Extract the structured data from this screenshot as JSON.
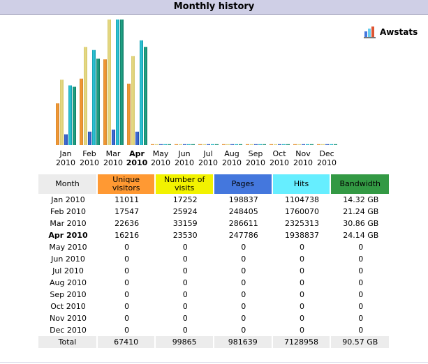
{
  "title": "Monthly history",
  "logo": {
    "text": "Awstats",
    "icon": "awstats-logo-icon"
  },
  "colors": {
    "header_month": "#ececec",
    "unique_visitors": "#ff9933",
    "number_of_visits": "#f2f200",
    "pages": "#4477dd",
    "hits": "#66eeff",
    "bandwidth": "#339944"
  },
  "columns": {
    "month": "Month",
    "unique": "Unique visitors",
    "visits": "Number of visits",
    "pages": "Pages",
    "hits": "Hits",
    "bandwidth": "Bandwidth"
  },
  "chart_data": {
    "type": "bar",
    "categories": [
      "Jan 2010",
      "Feb 2010",
      "Mar 2010",
      "Apr 2010",
      "May 2010",
      "Jun 2010",
      "Jul 2010",
      "Aug 2010",
      "Sep 2010",
      "Oct 2010",
      "Nov 2010",
      "Dec 2010"
    ],
    "current_month": "Apr 2010",
    "series": [
      {
        "name": "Unique visitors",
        "values": [
          11011,
          17547,
          22636,
          16216,
          0,
          0,
          0,
          0,
          0,
          0,
          0,
          0
        ]
      },
      {
        "name": "Number of visits",
        "values": [
          17252,
          25924,
          33159,
          23530,
          0,
          0,
          0,
          0,
          0,
          0,
          0,
          0
        ]
      },
      {
        "name": "Pages",
        "values": [
          198837,
          248405,
          286611,
          247786,
          0,
          0,
          0,
          0,
          0,
          0,
          0,
          0
        ]
      },
      {
        "name": "Hits",
        "values": [
          1104738,
          1760070,
          2325313,
          1938837,
          0,
          0,
          0,
          0,
          0,
          0,
          0,
          0
        ]
      },
      {
        "name": "Bandwidth",
        "values": [
          14.32,
          21.24,
          30.86,
          24.14,
          0,
          0,
          0,
          0,
          0,
          0,
          0,
          0
        ]
      }
    ]
  },
  "rows": [
    {
      "month": "Jan 2010",
      "unique": "11011",
      "visits": "17252",
      "pages": "198837",
      "hits": "1104738",
      "bandwidth": "14.32 GB"
    },
    {
      "month": "Feb 2010",
      "unique": "17547",
      "visits": "25924",
      "pages": "248405",
      "hits": "1760070",
      "bandwidth": "21.24 GB"
    },
    {
      "month": "Mar 2010",
      "unique": "22636",
      "visits": "33159",
      "pages": "286611",
      "hits": "2325313",
      "bandwidth": "30.86 GB"
    },
    {
      "month": "Apr 2010",
      "unique": "16216",
      "visits": "23530",
      "pages": "247786",
      "hits": "1938837",
      "bandwidth": "24.14 GB"
    },
    {
      "month": "May 2010",
      "unique": "0",
      "visits": "0",
      "pages": "0",
      "hits": "0",
      "bandwidth": "0"
    },
    {
      "month": "Jun 2010",
      "unique": "0",
      "visits": "0",
      "pages": "0",
      "hits": "0",
      "bandwidth": "0"
    },
    {
      "month": "Jul 2010",
      "unique": "0",
      "visits": "0",
      "pages": "0",
      "hits": "0",
      "bandwidth": "0"
    },
    {
      "month": "Aug 2010",
      "unique": "0",
      "visits": "0",
      "pages": "0",
      "hits": "0",
      "bandwidth": "0"
    },
    {
      "month": "Sep 2010",
      "unique": "0",
      "visits": "0",
      "pages": "0",
      "hits": "0",
      "bandwidth": "0"
    },
    {
      "month": "Oct 2010",
      "unique": "0",
      "visits": "0",
      "pages": "0",
      "hits": "0",
      "bandwidth": "0"
    },
    {
      "month": "Nov 2010",
      "unique": "0",
      "visits": "0",
      "pages": "0",
      "hits": "0",
      "bandwidth": "0"
    },
    {
      "month": "Dec 2010",
      "unique": "0",
      "visits": "0",
      "pages": "0",
      "hits": "0",
      "bandwidth": "0"
    }
  ],
  "total": {
    "label": "Total",
    "unique": "67410",
    "visits": "99865",
    "pages": "981639",
    "hits": "7128958",
    "bandwidth": "90.57 GB"
  }
}
